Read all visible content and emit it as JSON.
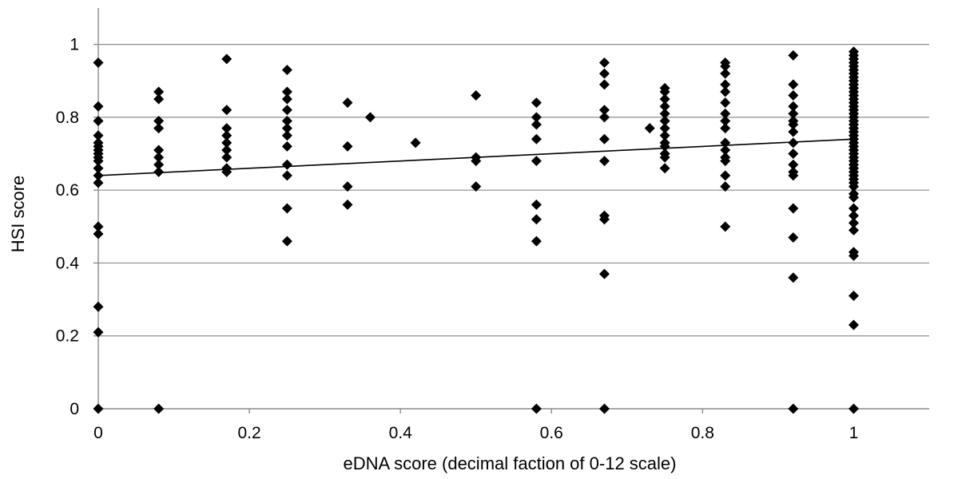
{
  "chart_data": {
    "type": "scatter",
    "title": "",
    "xlabel": "eDNA score (decimal faction of 0-12 scale)",
    "ylabel": "HSI score",
    "xlim": [
      0,
      1.1
    ],
    "ylim": [
      0,
      1.1
    ],
    "xticks": [
      0,
      0.2,
      0.4,
      0.6,
      0.8,
      1
    ],
    "yticks": [
      0,
      0.2,
      0.4,
      0.6,
      0.8,
      1
    ],
    "xtick_labels": [
      "0",
      "0.2",
      "0.4",
      "0.6",
      "0.8",
      "1"
    ],
    "ytick_labels": [
      "0",
      "0.2",
      "0.4",
      "0.6",
      "0.8",
      "1"
    ],
    "grid": "horizontal",
    "legend": "none",
    "marker": "diamond",
    "marker_color": "#000000",
    "trendline": {
      "type": "linear",
      "x": [
        0,
        1
      ],
      "y": [
        0.64,
        0.74
      ]
    },
    "points": [
      [
        0,
        0.95
      ],
      [
        0,
        0.83
      ],
      [
        0,
        0.79
      ],
      [
        0,
        0.75
      ],
      [
        0,
        0.73
      ],
      [
        0,
        0.72
      ],
      [
        0,
        0.71
      ],
      [
        0,
        0.7
      ],
      [
        0,
        0.69
      ],
      [
        0,
        0.68
      ],
      [
        0,
        0.66
      ],
      [
        0,
        0.64
      ],
      [
        0,
        0.62
      ],
      [
        0,
        0.5
      ],
      [
        0,
        0.48
      ],
      [
        0,
        0.28
      ],
      [
        0,
        0.21
      ],
      [
        0,
        0
      ],
      [
        0.08,
        0.87
      ],
      [
        0.08,
        0.85
      ],
      [
        0.08,
        0.79
      ],
      [
        0.08,
        0.77
      ],
      [
        0.08,
        0.71
      ],
      [
        0.08,
        0.69
      ],
      [
        0.08,
        0.67
      ],
      [
        0.08,
        0.65
      ],
      [
        0.08,
        0
      ],
      [
        0.17,
        0.96
      ],
      [
        0.17,
        0.82
      ],
      [
        0.17,
        0.77
      ],
      [
        0.17,
        0.75
      ],
      [
        0.17,
        0.73
      ],
      [
        0.17,
        0.71
      ],
      [
        0.17,
        0.69
      ],
      [
        0.17,
        0.66
      ],
      [
        0.17,
        0.65
      ],
      [
        0.25,
        0.93
      ],
      [
        0.25,
        0.87
      ],
      [
        0.25,
        0.85
      ],
      [
        0.25,
        0.82
      ],
      [
        0.25,
        0.79
      ],
      [
        0.25,
        0.77
      ],
      [
        0.25,
        0.75
      ],
      [
        0.25,
        0.72
      ],
      [
        0.25,
        0.67
      ],
      [
        0.25,
        0.64
      ],
      [
        0.25,
        0.55
      ],
      [
        0.25,
        0.46
      ],
      [
        0.33,
        0.84
      ],
      [
        0.33,
        0.72
      ],
      [
        0.33,
        0.61
      ],
      [
        0.33,
        0.56
      ],
      [
        0.36,
        0.8
      ],
      [
        0.42,
        0.73
      ],
      [
        0.5,
        0.86
      ],
      [
        0.5,
        0.69
      ],
      [
        0.5,
        0.68
      ],
      [
        0.5,
        0.61
      ],
      [
        0.58,
        0.84
      ],
      [
        0.58,
        0.8
      ],
      [
        0.58,
        0.78
      ],
      [
        0.58,
        0.74
      ],
      [
        0.58,
        0.68
      ],
      [
        0.58,
        0.56
      ],
      [
        0.58,
        0.52
      ],
      [
        0.58,
        0.46
      ],
      [
        0.58,
        0
      ],
      [
        0.67,
        0.95
      ],
      [
        0.67,
        0.92
      ],
      [
        0.67,
        0.89
      ],
      [
        0.67,
        0.82
      ],
      [
        0.67,
        0.8
      ],
      [
        0.67,
        0.74
      ],
      [
        0.67,
        0.68
      ],
      [
        0.67,
        0.53
      ],
      [
        0.67,
        0.52
      ],
      [
        0.67,
        0.37
      ],
      [
        0.67,
        0
      ],
      [
        0.73,
        0.77
      ],
      [
        0.75,
        0.88
      ],
      [
        0.75,
        0.87
      ],
      [
        0.75,
        0.85
      ],
      [
        0.75,
        0.83
      ],
      [
        0.75,
        0.81
      ],
      [
        0.75,
        0.79
      ],
      [
        0.75,
        0.77
      ],
      [
        0.75,
        0.75
      ],
      [
        0.75,
        0.73
      ],
      [
        0.75,
        0.72
      ],
      [
        0.75,
        0.7
      ],
      [
        0.75,
        0.69
      ],
      [
        0.75,
        0.66
      ],
      [
        0.83,
        0.95
      ],
      [
        0.83,
        0.94
      ],
      [
        0.83,
        0.92
      ],
      [
        0.83,
        0.89
      ],
      [
        0.83,
        0.87
      ],
      [
        0.83,
        0.84
      ],
      [
        0.83,
        0.81
      ],
      [
        0.83,
        0.79
      ],
      [
        0.83,
        0.77
      ],
      [
        0.83,
        0.73
      ],
      [
        0.83,
        0.71
      ],
      [
        0.83,
        0.69
      ],
      [
        0.83,
        0.68
      ],
      [
        0.83,
        0.64
      ],
      [
        0.83,
        0.61
      ],
      [
        0.83,
        0.5
      ],
      [
        0.92,
        0.97
      ],
      [
        0.92,
        0.89
      ],
      [
        0.92,
        0.86
      ],
      [
        0.92,
        0.83
      ],
      [
        0.92,
        0.81
      ],
      [
        0.92,
        0.79
      ],
      [
        0.92,
        0.78
      ],
      [
        0.92,
        0.76
      ],
      [
        0.92,
        0.73
      ],
      [
        0.92,
        0.7
      ],
      [
        0.92,
        0.67
      ],
      [
        0.92,
        0.65
      ],
      [
        0.92,
        0.64
      ],
      [
        0.92,
        0.55
      ],
      [
        0.92,
        0.47
      ],
      [
        0.92,
        0.36
      ],
      [
        0.92,
        0
      ],
      [
        1,
        0.98
      ],
      [
        1,
        0.97
      ],
      [
        1,
        0.96
      ],
      [
        1,
        0.95
      ],
      [
        1,
        0.94
      ],
      [
        1,
        0.93
      ],
      [
        1,
        0.92
      ],
      [
        1,
        0.91
      ],
      [
        1,
        0.9
      ],
      [
        1,
        0.89
      ],
      [
        1,
        0.88
      ],
      [
        1,
        0.87
      ],
      [
        1,
        0.86
      ],
      [
        1,
        0.85
      ],
      [
        1,
        0.84
      ],
      [
        1,
        0.83
      ],
      [
        1,
        0.82
      ],
      [
        1,
        0.81
      ],
      [
        1,
        0.8
      ],
      [
        1,
        0.79
      ],
      [
        1,
        0.78
      ],
      [
        1,
        0.77
      ],
      [
        1,
        0.76
      ],
      [
        1,
        0.75
      ],
      [
        1,
        0.74
      ],
      [
        1,
        0.73
      ],
      [
        1,
        0.72
      ],
      [
        1,
        0.71
      ],
      [
        1,
        0.7
      ],
      [
        1,
        0.69
      ],
      [
        1,
        0.68
      ],
      [
        1,
        0.67
      ],
      [
        1,
        0.66
      ],
      [
        1,
        0.65
      ],
      [
        1,
        0.64
      ],
      [
        1,
        0.63
      ],
      [
        1,
        0.62
      ],
      [
        1,
        0.61
      ],
      [
        1,
        0.59
      ],
      [
        1,
        0.58
      ],
      [
        1,
        0.55
      ],
      [
        1,
        0.53
      ],
      [
        1,
        0.51
      ],
      [
        1,
        0.49
      ],
      [
        1,
        0.43
      ],
      [
        1,
        0.42
      ],
      [
        1,
        0.31
      ],
      [
        1,
        0.23
      ],
      [
        1,
        0
      ]
    ]
  }
}
